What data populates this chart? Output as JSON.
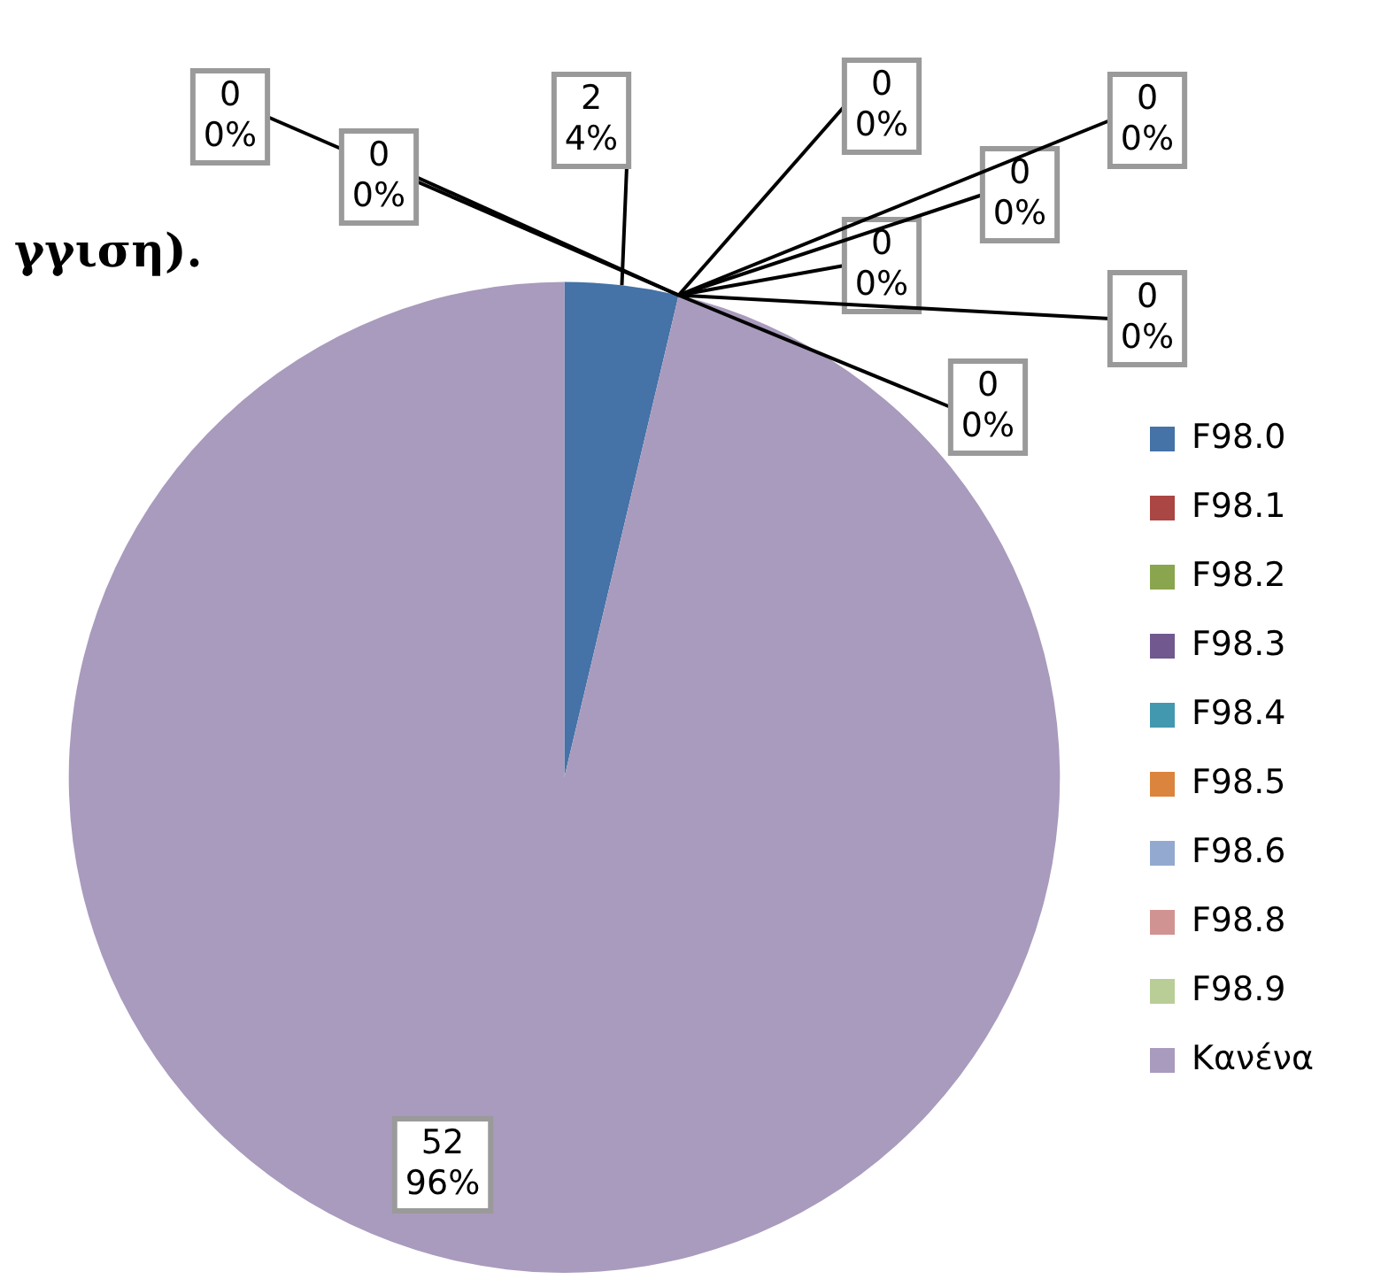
{
  "chart_data": {
    "type": "pie",
    "title": "γγιση).",
    "categories": [
      "F98.0",
      "F98.1",
      "F98.2",
      "F98.3",
      "F98.4",
      "F98.5",
      "F98.6",
      "F98.8",
      "F98.9",
      "Κανένα"
    ],
    "values": [
      2,
      0,
      0,
      0,
      0,
      0,
      0,
      0,
      0,
      52
    ],
    "colors": [
      "#4572a7",
      "#aa4643",
      "#89a54e",
      "#71588f",
      "#4198af",
      "#db843d",
      "#93a9cf",
      "#d19392",
      "#b9cd96",
      "#a99bbd"
    ],
    "value_labels": [
      "2\n4%",
      "0\n0%",
      "0\n0%",
      "0\n0%",
      "0\n0%",
      "0\n0%",
      "0\n0%",
      "0\n0%",
      "0\n0%",
      "52\n96%"
    ],
    "legend": "right"
  }
}
